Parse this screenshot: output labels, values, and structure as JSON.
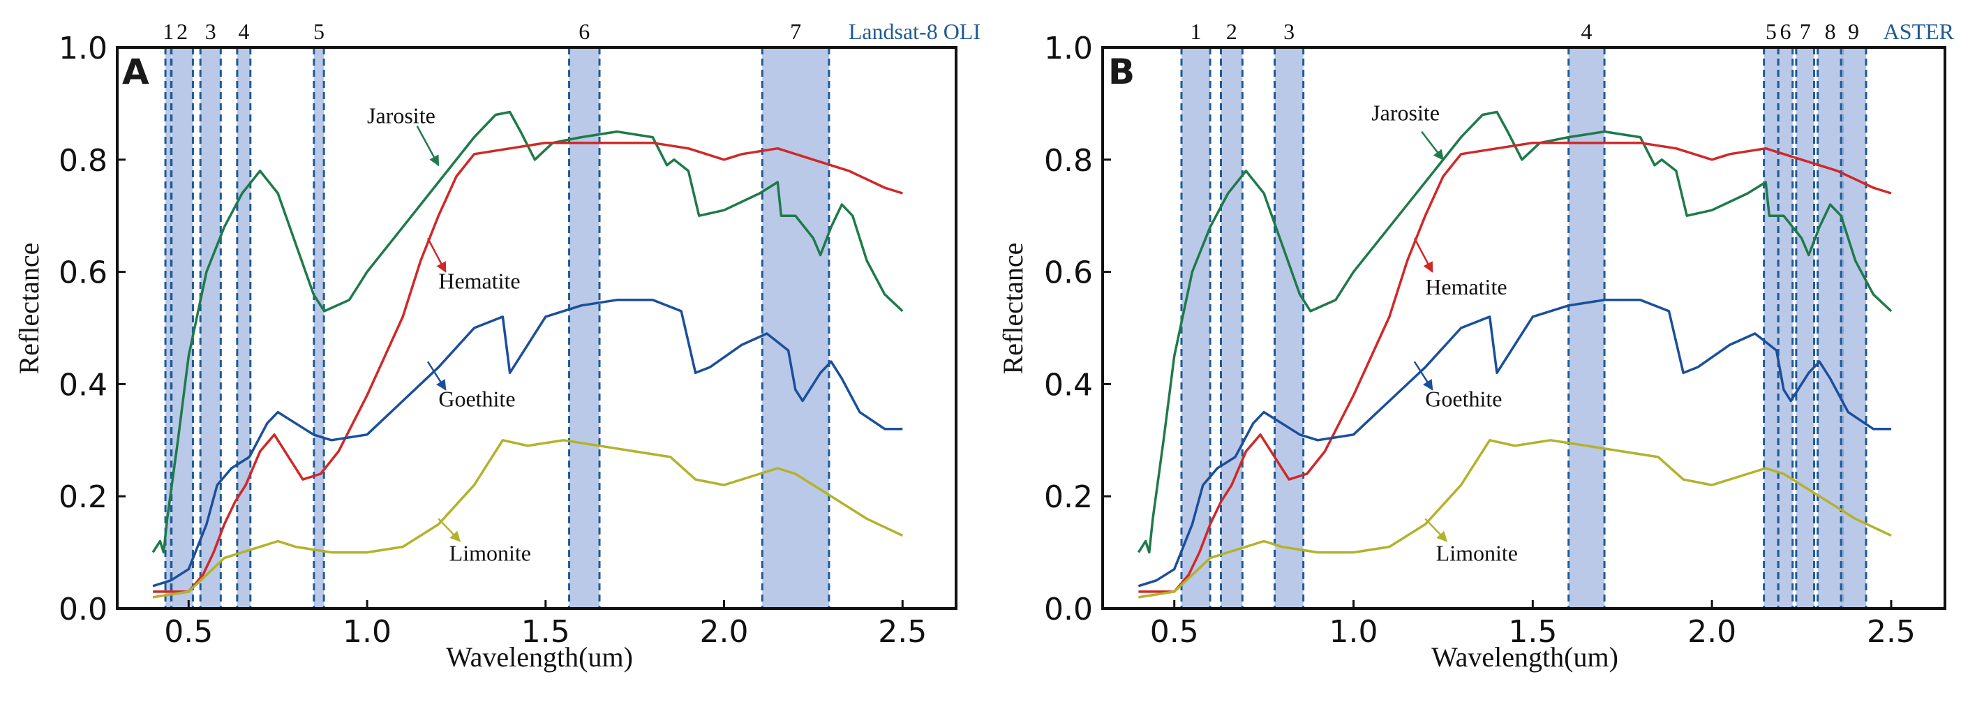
{
  "figure": {
    "accent": "#1f5a94",
    "band_fill": "#a9bce2",
    "band_fill_dark": "#6a8fd0"
  },
  "chart_data": [
    {
      "type": "line",
      "panel_label": "A",
      "sensor": "Landsat-8 OLI",
      "xlabel": "Wavelength(um)",
      "ylabel": "Reflectance",
      "xlim": [
        0.3,
        2.65
      ],
      "ylim": [
        0,
        1.0
      ],
      "xticks": [
        0.5,
        1.0,
        1.5,
        2.0,
        2.5
      ],
      "xtick_labels": [
        "0.5",
        "1.0",
        "1.5",
        "2.0",
        "2.5"
      ],
      "yticks": [
        0.0,
        0.2,
        0.4,
        0.6,
        0.8,
        1.0
      ],
      "ytick_labels": [
        "0.0",
        "0.2",
        "0.4",
        "0.6",
        "0.8",
        "1.0"
      ],
      "bands": [
        {
          "label": "1",
          "start": 0.435,
          "end": 0.451
        },
        {
          "label": "2",
          "start": 0.452,
          "end": 0.512
        },
        {
          "label": "3",
          "start": 0.533,
          "end": 0.59
        },
        {
          "label": "4",
          "start": 0.636,
          "end": 0.673
        },
        {
          "label": "5",
          "start": 0.851,
          "end": 0.879
        },
        {
          "label": "6",
          "start": 1.566,
          "end": 1.651
        },
        {
          "label": "7",
          "start": 2.107,
          "end": 2.294
        }
      ]
    },
    {
      "type": "line",
      "panel_label": "B",
      "sensor": "ASTER",
      "xlabel": "Wavelength(um)",
      "ylabel": "Reflectance",
      "xlim": [
        0.3,
        2.65
      ],
      "ylim": [
        0,
        1.0
      ],
      "xticks": [
        0.5,
        1.0,
        1.5,
        2.0,
        2.5
      ],
      "xtick_labels": [
        "0.5",
        "1.0",
        "1.5",
        "2.0",
        "2.5"
      ],
      "yticks": [
        0.0,
        0.2,
        0.4,
        0.6,
        0.8,
        1.0
      ],
      "ytick_labels": [
        "0.0",
        "0.2",
        "0.4",
        "0.6",
        "0.8",
        "1.0"
      ],
      "bands": [
        {
          "label": "1",
          "start": 0.52,
          "end": 0.6
        },
        {
          "label": "2",
          "start": 0.63,
          "end": 0.69
        },
        {
          "label": "3",
          "start": 0.78,
          "end": 0.86
        },
        {
          "label": "4",
          "start": 1.6,
          "end": 1.7
        },
        {
          "label": "5",
          "start": 2.145,
          "end": 2.185
        },
        {
          "label": "6",
          "start": 2.185,
          "end": 2.225
        },
        {
          "label": "7",
          "start": 2.235,
          "end": 2.285
        },
        {
          "label": "8",
          "start": 2.295,
          "end": 2.365
        },
        {
          "label": "9",
          "start": 2.36,
          "end": 2.43
        }
      ]
    }
  ],
  "series": [
    {
      "name": "Jarosite",
      "color": "#1f7a4a",
      "points": [
        [
          0.4,
          0.1
        ],
        [
          0.42,
          0.12
        ],
        [
          0.43,
          0.1
        ],
        [
          0.44,
          0.16
        ],
        [
          0.47,
          0.3
        ],
        [
          0.5,
          0.45
        ],
        [
          0.55,
          0.6
        ],
        [
          0.6,
          0.68
        ],
        [
          0.65,
          0.74
        ],
        [
          0.7,
          0.78
        ],
        [
          0.75,
          0.74
        ],
        [
          0.8,
          0.65
        ],
        [
          0.85,
          0.56
        ],
        [
          0.88,
          0.53
        ],
        [
          0.95,
          0.55
        ],
        [
          1.0,
          0.6
        ],
        [
          1.1,
          0.68
        ],
        [
          1.2,
          0.76
        ],
        [
          1.3,
          0.84
        ],
        [
          1.36,
          0.88
        ],
        [
          1.4,
          0.885
        ],
        [
          1.43,
          0.85
        ],
        [
          1.47,
          0.8
        ],
        [
          1.52,
          0.83
        ],
        [
          1.6,
          0.84
        ],
        [
          1.7,
          0.85
        ],
        [
          1.8,
          0.84
        ],
        [
          1.84,
          0.79
        ],
        [
          1.86,
          0.8
        ],
        [
          1.9,
          0.78
        ],
        [
          1.93,
          0.7
        ],
        [
          2.0,
          0.71
        ],
        [
          2.1,
          0.74
        ],
        [
          2.15,
          0.76
        ],
        [
          2.16,
          0.7
        ],
        [
          2.2,
          0.7
        ],
        [
          2.25,
          0.66
        ],
        [
          2.27,
          0.63
        ],
        [
          2.3,
          0.68
        ],
        [
          2.33,
          0.72
        ],
        [
          2.36,
          0.7
        ],
        [
          2.4,
          0.62
        ],
        [
          2.45,
          0.56
        ],
        [
          2.5,
          0.53
        ]
      ]
    },
    {
      "name": "Hematite",
      "color": "#d02828",
      "points": [
        [
          0.4,
          0.03
        ],
        [
          0.5,
          0.03
        ],
        [
          0.54,
          0.06
        ],
        [
          0.57,
          0.1
        ],
        [
          0.6,
          0.15
        ],
        [
          0.63,
          0.19
        ],
        [
          0.66,
          0.22
        ],
        [
          0.7,
          0.28
        ],
        [
          0.74,
          0.31
        ],
        [
          0.78,
          0.27
        ],
        [
          0.82,
          0.23
        ],
        [
          0.87,
          0.24
        ],
        [
          0.92,
          0.28
        ],
        [
          1.0,
          0.38
        ],
        [
          1.05,
          0.45
        ],
        [
          1.1,
          0.52
        ],
        [
          1.15,
          0.62
        ],
        [
          1.2,
          0.7
        ],
        [
          1.25,
          0.77
        ],
        [
          1.3,
          0.81
        ],
        [
          1.4,
          0.82
        ],
        [
          1.5,
          0.83
        ],
        [
          1.6,
          0.83
        ],
        [
          1.7,
          0.83
        ],
        [
          1.8,
          0.83
        ],
        [
          1.9,
          0.82
        ],
        [
          2.0,
          0.8
        ],
        [
          2.05,
          0.81
        ],
        [
          2.15,
          0.82
        ],
        [
          2.25,
          0.8
        ],
        [
          2.35,
          0.78
        ],
        [
          2.45,
          0.75
        ],
        [
          2.5,
          0.74
        ]
      ]
    },
    {
      "name": "Goethite",
      "color": "#1b4f9c",
      "points": [
        [
          0.4,
          0.04
        ],
        [
          0.45,
          0.05
        ],
        [
          0.5,
          0.07
        ],
        [
          0.55,
          0.15
        ],
        [
          0.58,
          0.22
        ],
        [
          0.62,
          0.25
        ],
        [
          0.67,
          0.27
        ],
        [
          0.72,
          0.33
        ],
        [
          0.75,
          0.35
        ],
        [
          0.8,
          0.33
        ],
        [
          0.85,
          0.31
        ],
        [
          0.9,
          0.3
        ],
        [
          1.0,
          0.31
        ],
        [
          1.1,
          0.37
        ],
        [
          1.2,
          0.43
        ],
        [
          1.3,
          0.5
        ],
        [
          1.38,
          0.52
        ],
        [
          1.4,
          0.42
        ],
        [
          1.43,
          0.45
        ],
        [
          1.5,
          0.52
        ],
        [
          1.6,
          0.54
        ],
        [
          1.7,
          0.55
        ],
        [
          1.8,
          0.55
        ],
        [
          1.88,
          0.53
        ],
        [
          1.92,
          0.42
        ],
        [
          1.96,
          0.43
        ],
        [
          2.05,
          0.47
        ],
        [
          2.12,
          0.49
        ],
        [
          2.18,
          0.46
        ],
        [
          2.2,
          0.39
        ],
        [
          2.22,
          0.37
        ],
        [
          2.27,
          0.42
        ],
        [
          2.3,
          0.44
        ],
        [
          2.33,
          0.41
        ],
        [
          2.38,
          0.35
        ],
        [
          2.45,
          0.32
        ],
        [
          2.5,
          0.32
        ]
      ]
    },
    {
      "name": "Limonite",
      "color": "#b3b22b",
      "points": [
        [
          0.4,
          0.02
        ],
        [
          0.5,
          0.03
        ],
        [
          0.55,
          0.06
        ],
        [
          0.6,
          0.09
        ],
        [
          0.65,
          0.1
        ],
        [
          0.7,
          0.11
        ],
        [
          0.75,
          0.12
        ],
        [
          0.8,
          0.11
        ],
        [
          0.9,
          0.1
        ],
        [
          1.0,
          0.1
        ],
        [
          1.1,
          0.11
        ],
        [
          1.2,
          0.15
        ],
        [
          1.3,
          0.22
        ],
        [
          1.38,
          0.3
        ],
        [
          1.45,
          0.29
        ],
        [
          1.55,
          0.3
        ],
        [
          1.65,
          0.29
        ],
        [
          1.75,
          0.28
        ],
        [
          1.85,
          0.27
        ],
        [
          1.92,
          0.23
        ],
        [
          2.0,
          0.22
        ],
        [
          2.1,
          0.24
        ],
        [
          2.15,
          0.25
        ],
        [
          2.2,
          0.24
        ],
        [
          2.3,
          0.2
        ],
        [
          2.4,
          0.16
        ],
        [
          2.5,
          0.13
        ]
      ]
    }
  ],
  "labels_A": [
    {
      "text": "Jarosite",
      "x": 1.0,
      "y": 0.865,
      "ax": 1.14,
      "ay": 0.86,
      "bx": 1.2,
      "by": 0.79
    },
    {
      "text": "Hematite",
      "x": 1.2,
      "y": 0.57,
      "ax": 1.17,
      "ay": 0.66,
      "bx": 1.22,
      "by": 0.6
    },
    {
      "text": "Goethite",
      "x": 1.2,
      "y": 0.36,
      "ax": 1.17,
      "ay": 0.44,
      "bx": 1.22,
      "by": 0.39
    },
    {
      "text": "Limonite",
      "x": 1.23,
      "y": 0.085,
      "ax": 1.2,
      "ay": 0.16,
      "bx": 1.26,
      "by": 0.12
    }
  ],
  "labels_B": [
    {
      "text": "Jarosite",
      "x": 1.05,
      "y": 0.87,
      "ax": 1.19,
      "ay": 0.85,
      "bx": 1.25,
      "by": 0.8
    },
    {
      "text": "Hematite",
      "x": 1.2,
      "y": 0.56,
      "ax": 1.17,
      "ay": 0.66,
      "bx": 1.22,
      "by": 0.6
    },
    {
      "text": "Goethite",
      "x": 1.2,
      "y": 0.36,
      "ax": 1.17,
      "ay": 0.44,
      "bx": 1.22,
      "by": 0.39
    },
    {
      "text": "Limonite",
      "x": 1.23,
      "y": 0.085,
      "ax": 1.2,
      "ay": 0.16,
      "bx": 1.26,
      "by": 0.12
    }
  ]
}
